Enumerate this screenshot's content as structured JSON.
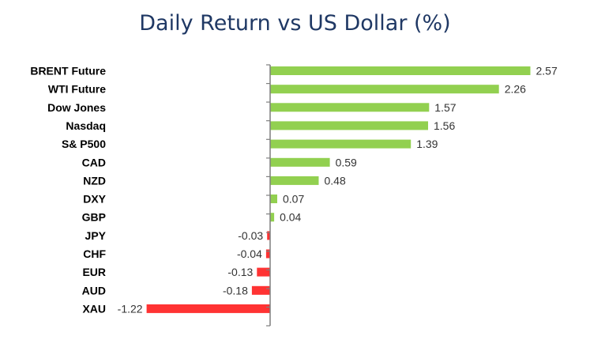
{
  "chart_data": {
    "type": "bar",
    "orientation": "horizontal",
    "title": "Daily Return vs US Dollar (%)",
    "xlabel": "",
    "ylabel": "",
    "categories": [
      "BRENT Future",
      "WTI Future",
      "Dow Jones",
      "Nasdaq",
      "S& P500",
      "CAD",
      "NZD",
      "DXY",
      "GBP",
      "JPY",
      "CHF",
      "EUR",
      "AUD",
      "XAU"
    ],
    "values": [
      2.57,
      2.26,
      1.57,
      1.56,
      1.39,
      0.59,
      0.48,
      0.07,
      0.04,
      -0.03,
      -0.04,
      -0.13,
      -0.18,
      -1.22
    ],
    "value_labels": [
      "2.57",
      "2.26",
      "1.57",
      "1.56",
      "1.39",
      "0.59",
      "0.48",
      "0.07",
      "0.04",
      "-0.03",
      "-0.04",
      "-0.13",
      "-0.18",
      "-1.22"
    ],
    "positive_color": "#92d050",
    "negative_color": "#ff3333",
    "axis_color": "#7f7f7f",
    "grid": false,
    "legend": "none"
  }
}
